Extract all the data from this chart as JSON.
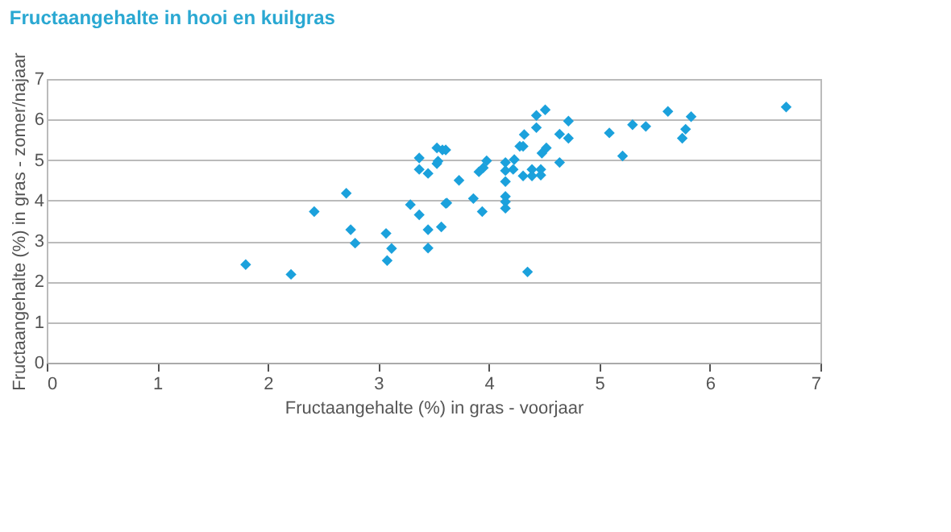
{
  "chart_data": {
    "type": "scatter",
    "title": "Fructaangehalte in hooi en kuilgras",
    "xlabel": "Fructaangehalte (%) in gras - voorjaar",
    "ylabel": "Fructaangehalte (%) in gras - zomer/najaar",
    "x": [
      1.8,
      2.21,
      2.42,
      2.71,
      2.75,
      2.79,
      3.07,
      3.12,
      3.08,
      3.29,
      3.37,
      3.45,
      3.45,
      3.57,
      3.61,
      3.37,
      3.37,
      3.45,
      3.53,
      3.53,
      3.58,
      3.61,
      3.54,
      3.62,
      3.73,
      3.86,
      3.94,
      3.91,
      3.95,
      3.98,
      4.15,
      4.15,
      4.23,
      4.22,
      4.15,
      4.15,
      4.15,
      4.15,
      4.31,
      4.39,
      4.39,
      4.47,
      4.47,
      4.31,
      4.28,
      4.32,
      4.43,
      4.43,
      4.51,
      4.48,
      4.52,
      4.64,
      4.72,
      4.72,
      4.64,
      4.35,
      5.09,
      5.21,
      5.3,
      5.42,
      5.62,
      5.83,
      5.78,
      5.75,
      6.69
    ],
    "series": [
      {
        "color": "#1ba1dc",
        "values": [
          2.42,
          2.18,
          3.73,
          4.18,
          3.28,
          2.95,
          3.19,
          2.82,
          2.52,
          3.9,
          3.65,
          3.28,
          2.83,
          3.35,
          3.93,
          5.05,
          4.77,
          4.67,
          5.3,
          4.91,
          5.25,
          5.25,
          4.97,
          3.94,
          4.5,
          4.05,
          3.73,
          4.71,
          4.81,
          4.98,
          4.94,
          4.74,
          5.01,
          4.77,
          4.47,
          4.1,
          3.97,
          3.81,
          4.61,
          4.77,
          4.61,
          4.77,
          4.63,
          5.34,
          5.34,
          5.63,
          5.8,
          6.1,
          6.24,
          5.17,
          5.3,
          5.64,
          5.96,
          5.54,
          4.94,
          2.24,
          5.67,
          5.1,
          5.87,
          5.83,
          6.2,
          6.07,
          5.76,
          5.54,
          6.31
        ]
      }
    ],
    "xlim": [
      0,
      7
    ],
    "xticks": [
      0,
      1,
      2,
      3,
      4,
      5,
      6,
      7
    ],
    "ylim": [
      0,
      7
    ],
    "yticks": [
      0,
      1,
      2,
      3,
      4,
      5,
      6,
      7
    ],
    "grid": "y",
    "marker": "diamond"
  }
}
